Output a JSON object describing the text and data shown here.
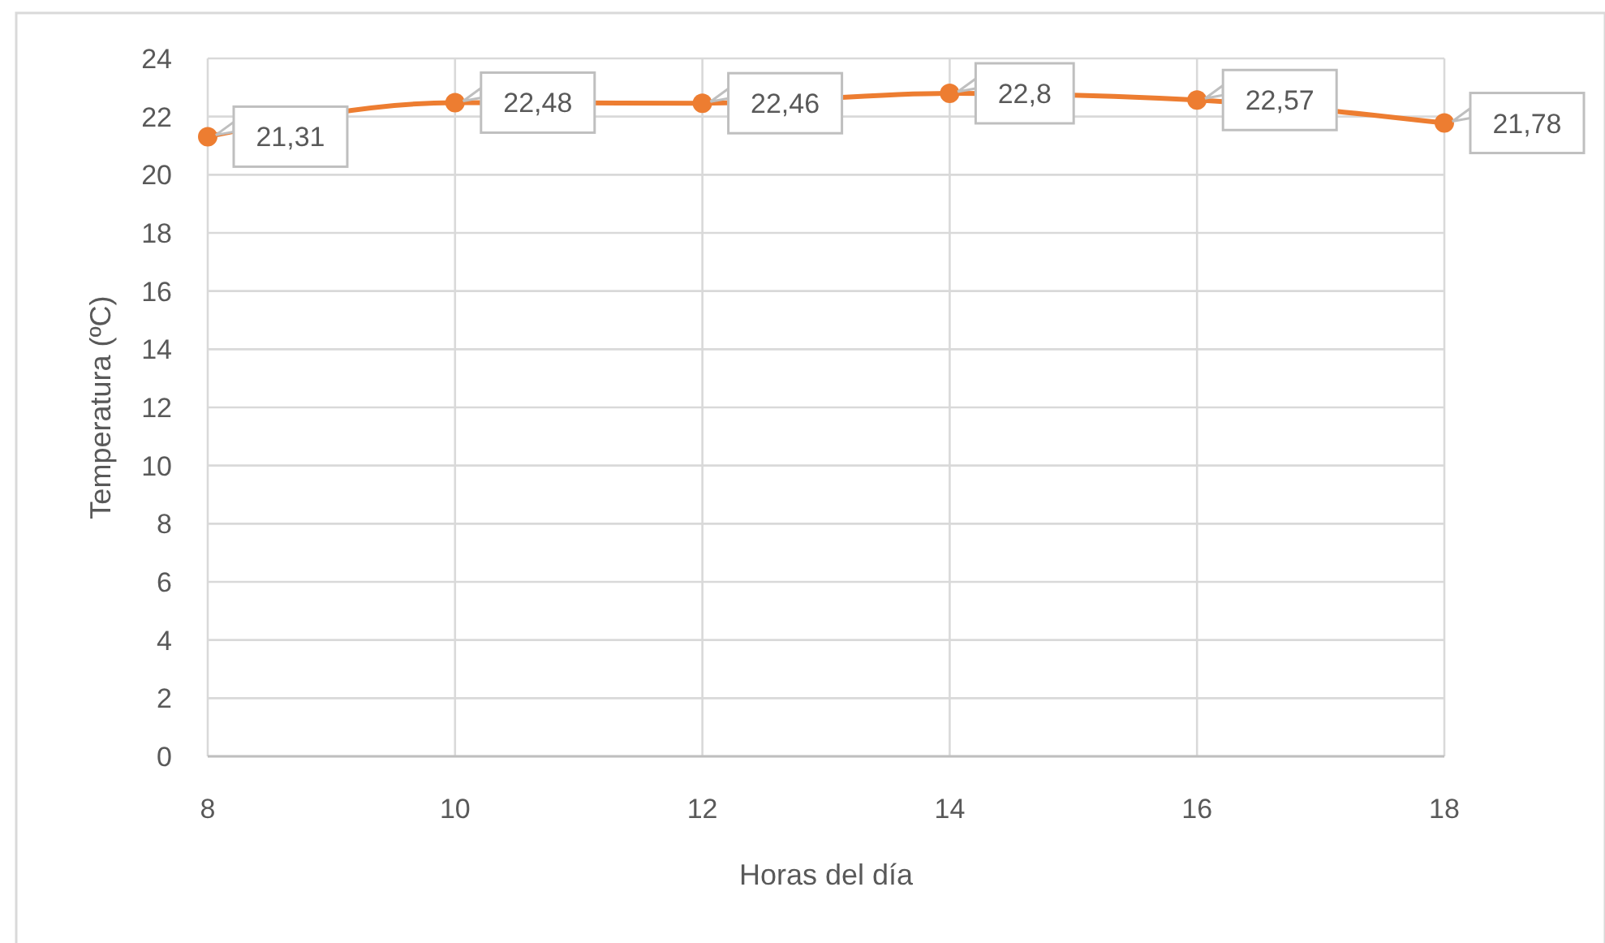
{
  "chart_data": {
    "type": "line",
    "xlabel": "Horas del día",
    "ylabel": "Temperatura (ºC)",
    "x": [
      8,
      10,
      12,
      14,
      16,
      18
    ],
    "values": [
      21.31,
      22.48,
      22.46,
      22.8,
      22.57,
      21.78
    ],
    "value_labels": [
      "21,31",
      "22,48",
      "22,46",
      "22,8",
      "22,57",
      "21,78"
    ],
    "color": "#ed7d31",
    "xlim": [
      8,
      18
    ],
    "xticks": [
      8,
      10,
      12,
      14,
      16,
      18
    ],
    "ylim": [
      0,
      24
    ],
    "yticks": [
      0,
      2,
      4,
      6,
      8,
      10,
      12,
      14,
      16,
      18,
      20,
      22,
      24
    ],
    "grid": true,
    "marker": "circle",
    "line_style": "solid"
  }
}
